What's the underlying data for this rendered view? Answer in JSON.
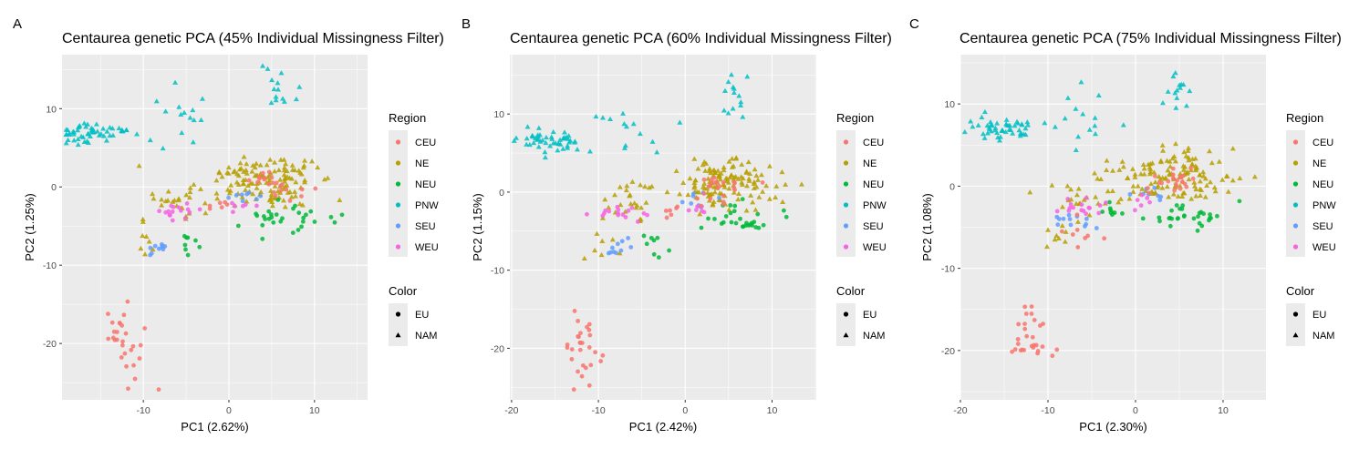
{
  "figure": {
    "panel_labels": [
      "A",
      "B",
      "C"
    ]
  },
  "legend": {
    "region_title": "Region",
    "regions": [
      {
        "name": "CEU",
        "color": "#F8766D"
      },
      {
        "name": "NE",
        "color": "#B79F00"
      },
      {
        "name": "NEU",
        "color": "#00BA38"
      },
      {
        "name": "PNW",
        "color": "#00BFC4"
      },
      {
        "name": "SEU",
        "color": "#619CFF"
      },
      {
        "name": "WEU",
        "color": "#F564E3"
      }
    ],
    "color_title": "Color",
    "shapes": [
      {
        "name": "EU",
        "shape": "circle"
      },
      {
        "name": "NAM",
        "shape": "triangle"
      }
    ]
  },
  "chart_data": [
    {
      "type": "scatter",
      "title": "Centaurea genetic PCA (45% Individual Missingness Filter)",
      "xlabel": "PC1 (2.62%)",
      "ylabel": "PC2 (1.25%)",
      "xlim": [
        -19.5,
        16.2
      ],
      "ylim": [
        -27.2,
        16.9
      ],
      "xticks": [
        -10,
        0,
        10
      ],
      "yticks": [
        -20,
        -10,
        0,
        10
      ],
      "grid": true,
      "legend_position": "right",
      "clusters": {
        "PNW": [
          [
            -15.8,
            6.8,
            3.8,
            1.2,
            55
          ],
          [
            -5,
            8.5,
            5,
            3,
            15
          ],
          [
            5,
            11.5,
            2,
            3,
            14
          ]
        ],
        "NE": [
          [
            4.5,
            0.8,
            5.5,
            2.6,
            130
          ],
          [
            -5.5,
            -2,
            3.5,
            2.5,
            25
          ],
          [
            -9,
            -6,
            1.5,
            3,
            8
          ]
        ],
        "CEU": [
          [
            -12.2,
            -20,
            1.8,
            4,
            28
          ],
          [
            5,
            0.3,
            3,
            1.5,
            22
          ],
          [
            -1,
            -2.5,
            1.5,
            0.8,
            6
          ]
        ],
        "NEU": [
          [
            7,
            -4,
            4.5,
            1.5,
            30
          ],
          [
            -4,
            -7,
            2,
            1.5,
            8
          ]
        ],
        "SEU": [
          [
            -8.5,
            -7.5,
            1.5,
            1.2,
            10
          ],
          [
            2,
            -1,
            2,
            1,
            8
          ]
        ],
        "WEU": [
          [
            -6,
            -3,
            2.5,
            1,
            16
          ],
          [
            1,
            -2.5,
            1.5,
            0.8,
            6
          ]
        ]
      },
      "shape_by_region": {
        "PNW": "NAM",
        "NE": "NAM",
        "CEU": "EU",
        "NEU": "EU",
        "SEU": "EU",
        "WEU": "EU"
      }
    },
    {
      "type": "scatter",
      "title": "Centaurea genetic PCA (60% Individual Missingness Filter)",
      "xlabel": "PC1 (2.42%)",
      "ylabel": "PC2 (1.15%)",
      "xlim": [
        -20.2,
        15.1
      ],
      "ylim": [
        -26.6,
        17.6
      ],
      "xticks": [
        -20,
        -10,
        0,
        10
      ],
      "yticks": [
        -20,
        -10,
        0,
        10
      ],
      "grid": true,
      "legend_position": "right",
      "clusters": {
        "PNW": [
          [
            -15.5,
            6.5,
            3.5,
            1.2,
            50
          ],
          [
            -6,
            7,
            4,
            3,
            14
          ],
          [
            6,
            12,
            2,
            3,
            14
          ]
        ],
        "NE": [
          [
            4.5,
            1.2,
            5.5,
            2.6,
            130
          ],
          [
            -6,
            -1.5,
            3.5,
            2.5,
            25
          ],
          [
            -9.5,
            -5.5,
            1.5,
            3,
            8
          ]
        ],
        "CEU": [
          [
            -12,
            -19.5,
            1.8,
            4,
            28
          ],
          [
            5,
            0.3,
            3,
            1.5,
            22
          ],
          [
            -1,
            -2.5,
            1.5,
            0.8,
            6
          ]
        ],
        "NEU": [
          [
            6.5,
            -3.5,
            4.5,
            1.5,
            30
          ],
          [
            -4,
            -7,
            2,
            1.5,
            8
          ]
        ],
        "SEU": [
          [
            -8,
            -7,
            1.5,
            1.2,
            10
          ],
          [
            2,
            -1,
            2,
            1,
            8
          ]
        ],
        "WEU": [
          [
            -6.5,
            -2.5,
            2.5,
            1,
            16
          ],
          [
            1,
            -2.5,
            1.5,
            0.8,
            6
          ]
        ]
      },
      "shape_by_region": {
        "PNW": "NAM",
        "NE": "NAM",
        "CEU": "EU",
        "NEU": "EU",
        "SEU": "EU",
        "WEU": "EU"
      }
    },
    {
      "type": "scatter",
      "title": "Centaurea genetic PCA (75% Individual Missingness Filter)",
      "xlabel": "PC1 (2.30%)",
      "ylabel": "PC2 (1.08%)",
      "xlim": [
        -20.0,
        14.9
      ],
      "ylim": [
        -26.0,
        16.0
      ],
      "xticks": [
        -20,
        -10,
        0,
        10
      ],
      "yticks": [
        -20,
        -10,
        0,
        10
      ],
      "grid": true,
      "legend_position": "right",
      "clusters": {
        "PNW": [
          [
            -15.8,
            7,
            3.5,
            1.2,
            50
          ],
          [
            -5.5,
            8,
            4,
            3,
            14
          ],
          [
            5.5,
            11.5,
            2,
            3,
            14
          ]
        ],
        "NE": [
          [
            4.5,
            1.2,
            5.5,
            2.6,
            130
          ],
          [
            -6,
            -1.5,
            3.5,
            2.5,
            25
          ],
          [
            -9.5,
            -5.5,
            1.5,
            3,
            8
          ]
        ],
        "CEU": [
          [
            -12,
            -18.5,
            1.8,
            4.5,
            28
          ],
          [
            4.5,
            0.3,
            3,
            1.5,
            22
          ],
          [
            -6,
            -6,
            1.5,
            1.5,
            8
          ]
        ],
        "NEU": [
          [
            6.5,
            -3.5,
            4.5,
            1.5,
            30
          ],
          [
            -3,
            -3,
            1.5,
            1,
            8
          ]
        ],
        "SEU": [
          [
            -7.5,
            -4,
            2,
            1.2,
            12
          ],
          [
            2,
            -1,
            2,
            1,
            8
          ]
        ],
        "WEU": [
          [
            -6.5,
            -2.5,
            2.5,
            1,
            16
          ],
          [
            1,
            -2,
            1.5,
            0.8,
            6
          ]
        ]
      },
      "shape_by_region": {
        "PNW": "NAM",
        "NE": "NAM",
        "CEU": "EU",
        "NEU": "EU",
        "SEU": "EU",
        "WEU": "EU"
      }
    }
  ]
}
